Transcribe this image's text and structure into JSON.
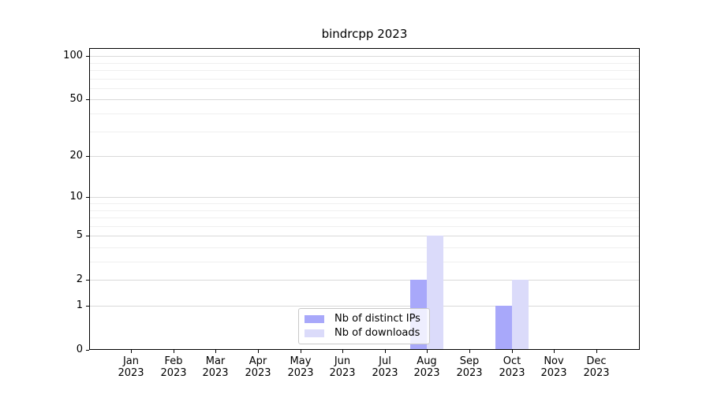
{
  "title": "bindrcpp 2023",
  "chart_data": {
    "type": "bar",
    "title": "bindrcpp 2023",
    "categories": [
      {
        "month": "Jan",
        "year": "2023"
      },
      {
        "month": "Feb",
        "year": "2023"
      },
      {
        "month": "Mar",
        "year": "2023"
      },
      {
        "month": "Apr",
        "year": "2023"
      },
      {
        "month": "May",
        "year": "2023"
      },
      {
        "month": "Jun",
        "year": "2023"
      },
      {
        "month": "Jul",
        "year": "2023"
      },
      {
        "month": "Aug",
        "year": "2023"
      },
      {
        "month": "Sep",
        "year": "2023"
      },
      {
        "month": "Oct",
        "year": "2023"
      },
      {
        "month": "Nov",
        "year": "2023"
      },
      {
        "month": "Dec",
        "year": "2023"
      }
    ],
    "series": [
      {
        "name": "Nb of distinct IPs",
        "color": "#a8a8fa",
        "values": [
          0,
          0,
          0,
          0,
          0,
          0,
          0,
          2,
          0,
          1,
          0,
          0
        ]
      },
      {
        "name": "Nb of downloads",
        "color": "#dbdbfa",
        "values": [
          0,
          0,
          0,
          0,
          0,
          0,
          0,
          5,
          0,
          2,
          0,
          0
        ]
      }
    ],
    "xlabel": "",
    "ylabel": "",
    "y_axis": {
      "scale": "log1p",
      "ylim": [
        0,
        113
      ],
      "ticks": [
        {
          "value": 0,
          "label": "0"
        },
        {
          "value": 1,
          "label": "1"
        },
        {
          "value": 2,
          "label": "2"
        },
        {
          "value": 5,
          "label": "5"
        },
        {
          "value": 10,
          "label": "10"
        },
        {
          "value": 20,
          "label": "20"
        },
        {
          "value": 50,
          "label": "50"
        },
        {
          "value": 100,
          "label": "100"
        }
      ],
      "minor_gridlines": [
        3,
        4,
        6,
        7,
        8,
        9,
        30,
        40,
        60,
        70,
        80,
        90
      ]
    },
    "grid": true,
    "legend_position": "lower center"
  },
  "colors": {
    "background": "#ffffff",
    "spine": "#000000",
    "grid_major": "#d9d9d9",
    "grid_minor": "#efefef",
    "legend_border": "#c9c9c9"
  }
}
